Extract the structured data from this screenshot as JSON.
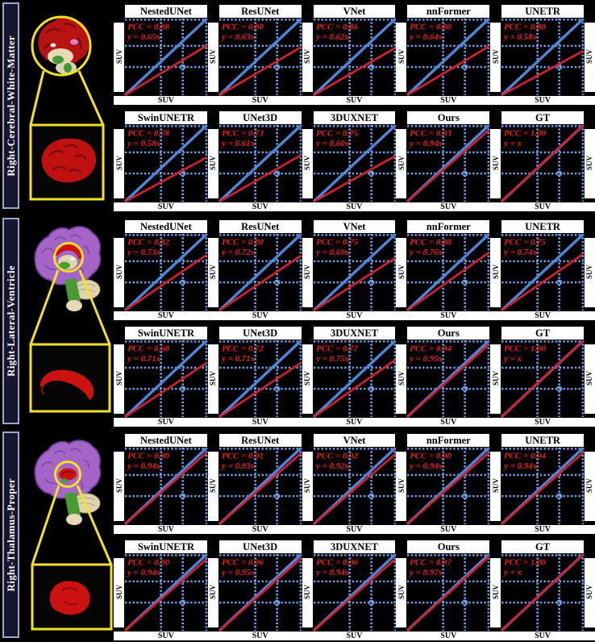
{
  "colors": {
    "background": "#000000",
    "identity_line_blue": "#4f86d8",
    "grid_dotted_blue": "#6fa0e8",
    "regression_red": "#d02030",
    "annotation_red": "#ea1c1c",
    "highlight_yellow": "#f2e126",
    "brain_cortex_purple": "#a565c8",
    "brain_structure_red": "#c01010",
    "region_label_bg": "#16162f",
    "panel_title_bg": "#ffffff"
  },
  "chart_data": [
    {
      "type": "scatter",
      "title": "Right-Cerebral-White-Matter",
      "xlabel": "SUV",
      "ylabel": "SUV",
      "grid": "dotted blue gridlines, top and right dotted border",
      "legend_position": "none",
      "reference_line": "y = x (solid blue identity diagonal)",
      "series": [
        {
          "name": "NestedUNet",
          "pcc": "PCC = 0.88",
          "equation": "y = 0.65x",
          "slope": 0.65
        },
        {
          "name": "ResUNet",
          "pcc": "PCC = 0.80",
          "equation": "y = 0.63x",
          "slope": 0.63
        },
        {
          "name": "VNet",
          "pcc": "PCC = 0.86",
          "equation": "y = 0.62x",
          "slope": 0.62
        },
        {
          "name": "nnFormer",
          "pcc": "PCC = 0.80",
          "equation": "y = 0.64x",
          "slope": 0.64
        },
        {
          "name": "UNETR",
          "pcc": "PCC = 0.80",
          "equation": "y = 0.58x",
          "slope": 0.58
        },
        {
          "name": "SwinUNETR",
          "pcc": "PCC = 0.78",
          "equation": "y = 0.58x",
          "slope": 0.58
        },
        {
          "name": "UNet3D",
          "pcc": "PCC = 0.73",
          "equation": "y = 0.61x",
          "slope": 0.61
        },
        {
          "name": "3DUXNET",
          "pcc": "PCC = 0.75",
          "equation": "y = 0.60x",
          "slope": 0.6
        },
        {
          "name": "Ours",
          "pcc": "PCC = 0.93",
          "equation": "y = 0.94x",
          "slope": 0.94
        },
        {
          "name": "GT",
          "pcc": "PCC = 1.00",
          "equation": "y = x",
          "slope": 1.0
        }
      ]
    },
    {
      "type": "scatter",
      "title": "Right-Lateral-Ventricle",
      "xlabel": "SUV",
      "ylabel": "SUV",
      "grid": "dotted blue gridlines, top and right dotted border",
      "legend_position": "none",
      "reference_line": "y = x (solid blue identity diagonal)",
      "series": [
        {
          "name": "NestedUNet",
          "pcc": "PCC = 0.82",
          "equation": "y = 0.73x",
          "slope": 0.73
        },
        {
          "name": "ResUNet",
          "pcc": "PCC = 0.80",
          "equation": "y = 0.72x",
          "slope": 0.72
        },
        {
          "name": "VNet",
          "pcc": "PCC = 0.75",
          "equation": "y = 0.69x",
          "slope": 0.69
        },
        {
          "name": "nnFormer",
          "pcc": "PCC = 0.80",
          "equation": "y = 0.76x",
          "slope": 0.76
        },
        {
          "name": "UNETR",
          "pcc": "PCC = 0.75",
          "equation": "y = 0.74x",
          "slope": 0.74
        },
        {
          "name": "SwinUNETR",
          "pcc": "PCC = 0.68",
          "equation": "y = 0.71x",
          "slope": 0.71
        },
        {
          "name": "UNet3D",
          "pcc": "PCC = 0.72",
          "equation": "y = 0.71x",
          "slope": 0.71
        },
        {
          "name": "3DUXNET",
          "pcc": "PCC = 0.77",
          "equation": "y = 0.75x",
          "slope": 0.75
        },
        {
          "name": "Ours",
          "pcc": "PCC = 0.94",
          "equation": "y = 0.95x",
          "slope": 0.95
        },
        {
          "name": "GT",
          "pcc": "PCC = 1.00",
          "equation": "y = x",
          "slope": 1.0
        }
      ]
    },
    {
      "type": "scatter",
      "title": "Right-Thalamus-Proper",
      "xlabel": "SUV",
      "ylabel": "SUV",
      "grid": "dotted blue gridlines, top and right dotted border",
      "legend_position": "none",
      "reference_line": "y = x (solid blue identity diagonal)",
      "series": [
        {
          "name": "NestedUNet",
          "pcc": "PCC = 0.90",
          "equation": "y = 0.94x",
          "slope": 0.94
        },
        {
          "name": "ResUNet",
          "pcc": "PCC = 0.91",
          "equation": "y = 0.93x",
          "slope": 0.93
        },
        {
          "name": "VNet",
          "pcc": "PCC = 0.92",
          "equation": "y = 0.92x",
          "slope": 0.92
        },
        {
          "name": "nnFormer",
          "pcc": "PCC = 0.90",
          "equation": "y = 0.94x",
          "slope": 0.94
        },
        {
          "name": "UNETR",
          "pcc": "PCC = 0.94",
          "equation": "y = 0.94x",
          "slope": 0.94
        },
        {
          "name": "SwinUNETR",
          "pcc": "PCC = 0.90",
          "equation": "y = 0.94x",
          "slope": 0.94
        },
        {
          "name": "UNet3D",
          "pcc": "PCC = 0.96",
          "equation": "y = 0.95x",
          "slope": 0.95
        },
        {
          "name": "3DUXNET",
          "pcc": "PCC = 0.96",
          "equation": "y = 0.94x",
          "slope": 0.94
        },
        {
          "name": "Ours",
          "pcc": "PCC = 0.97",
          "equation": "y = 0.97x",
          "slope": 0.97
        },
        {
          "name": "GT",
          "pcc": "PCC = 1.00",
          "equation": "y = x",
          "slope": 1.0
        }
      ]
    }
  ]
}
